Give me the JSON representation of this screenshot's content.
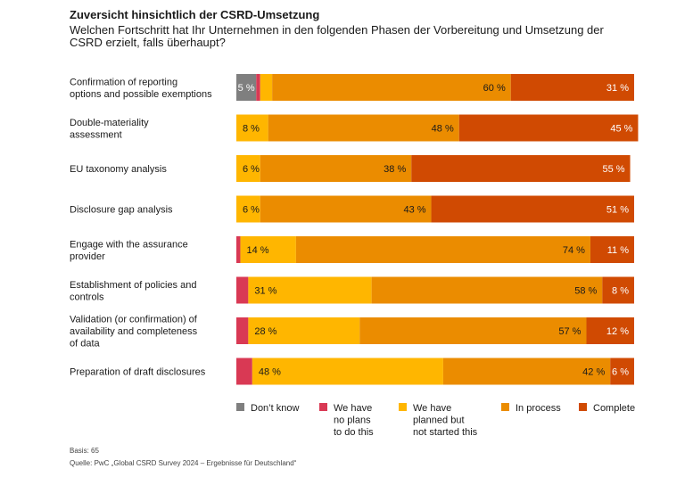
{
  "title": "Zuversicht hinsichtlich der CSRD-Umsetzung",
  "subtitle": "Welchen Fortschritt hat Ihr Unternehmen in den folgenden Phasen der Vorbereitung und Umsetzung der CSRD erzielt, falls überhaupt?",
  "basis": "Basis: 65",
  "source": "Quelle: PwC „Global CSRD Survey 2024 – Ergebnisse für Deutschland“",
  "chart_data": {
    "type": "bar",
    "orientation": "horizontal",
    "stacked": true,
    "xlim": [
      0,
      100
    ],
    "value_suffix": " %",
    "categories": [
      [
        "Confirmation of reporting",
        "options and possible exemptions"
      ],
      [
        "Double-materiality",
        "assessment"
      ],
      [
        "EU taxonomy analysis"
      ],
      [
        "Disclosure gap analysis"
      ],
      [
        "Engage with the assurance",
        "provider"
      ],
      [
        "Establishment of policies and",
        "controls"
      ],
      [
        "Validation (or confirmation) of",
        "availability and completeness",
        "of data"
      ],
      [
        "Preparation of draft disclosures"
      ]
    ],
    "series": [
      {
        "name": [
          "Don’t know"
        ],
        "color": "#7f7f7f",
        "label_color": "#ffffff",
        "values": [
          5,
          0,
          0,
          0,
          0,
          0,
          0,
          0
        ],
        "labels": [
          "5 %",
          "",
          "",
          "",
          "",
          "",
          "",
          ""
        ]
      },
      {
        "name": [
          "We have",
          "no plans",
          "to do this"
        ],
        "color": "#d93954",
        "label_color": "#1a1a1a",
        "values": [
          1,
          0,
          0,
          0,
          1,
          3,
          3,
          4
        ],
        "labels": [
          "",
          "",
          "",
          "",
          "",
          "",
          "",
          ""
        ]
      },
      {
        "name": [
          "We have",
          "planned but",
          "not started this"
        ],
        "color": "#ffb600",
        "label_color": "#1a1a1a",
        "values": [
          3,
          8,
          6,
          6,
          14,
          31,
          28,
          48
        ],
        "labels": [
          "",
          "8 %",
          "6 %",
          "6 %",
          "14 %",
          "31 %",
          "28 %",
          "48 %"
        ]
      },
      {
        "name": [
          "In process"
        ],
        "color": "#eb8c00",
        "label_color": "#1a1a1a",
        "values": [
          60,
          48,
          38,
          43,
          74,
          58,
          57,
          42
        ],
        "labels": [
          "60 %",
          "48 %",
          "38 %",
          "43 %",
          "74 %",
          "58 %",
          "57 %",
          "42 %"
        ]
      },
      {
        "name": [
          "Complete"
        ],
        "color": "#d04a02",
        "label_color": "#ffffff",
        "values": [
          31,
          45,
          55,
          51,
          11,
          8,
          12,
          6
        ],
        "labels": [
          "31 %",
          "45 %",
          "55 %",
          "51 %",
          "11 %",
          "8 %",
          "12 %",
          "6 %"
        ]
      }
    ]
  }
}
